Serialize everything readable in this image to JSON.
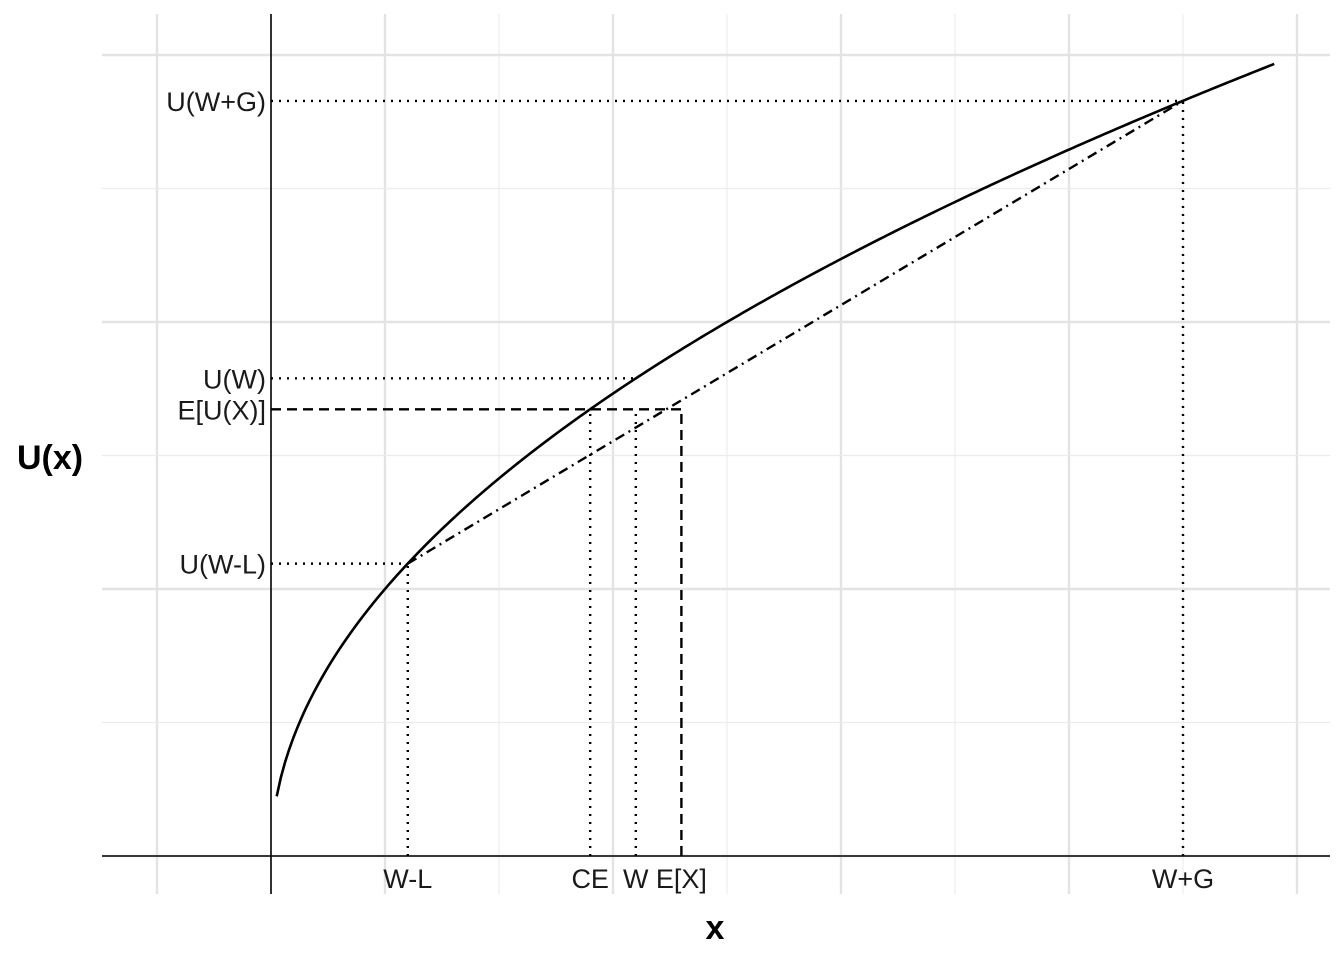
{
  "chart_data": {
    "type": "line",
    "title": "",
    "xlabel": "x",
    "ylabel": "U(x)",
    "grid": true,
    "xlim": [
      -1.5,
      9.26
    ],
    "ylim": [
      0,
      3.16
    ],
    "curve": {
      "function": "sqrt",
      "x": [
        0.05,
        0.2,
        0.5,
        1.0,
        1.2,
        1.5,
        2.0,
        2.5,
        2.8,
        3.0,
        3.2,
        3.5,
        4.0,
        5.0,
        6.0,
        7.0,
        8.0,
        8.8
      ],
      "y": [
        0.224,
        0.447,
        0.707,
        1.0,
        1.095,
        1.225,
        1.414,
        1.581,
        1.673,
        1.732,
        1.789,
        1.871,
        2.0,
        2.236,
        2.449,
        2.646,
        2.828,
        2.966
      ],
      "style": "solid"
    },
    "chord": {
      "x": [
        1.2,
        8.0
      ],
      "y": [
        1.095,
        2.828
      ],
      "style": "dashdot"
    },
    "points": {
      "W-L": {
        "x": 1.2,
        "y": 1.095
      },
      "CE": {
        "x": 2.8,
        "y": 1.673
      },
      "W": {
        "x": 3.2,
        "y": 1.789
      },
      "E[X]": {
        "x": 3.6,
        "y": 1.673
      },
      "W+G": {
        "x": 8.0,
        "y": 2.828
      }
    },
    "x_tick_labels": [
      {
        "label": "W-L",
        "x": 1.2
      },
      {
        "label": "CE",
        "x": 2.8
      },
      {
        "label": "W",
        "x": 3.2
      },
      {
        "label": "E[X]",
        "x": 3.6
      },
      {
        "label": "W+G",
        "x": 8.0
      }
    ],
    "y_tick_labels": [
      {
        "label": "U(W+G)",
        "y": 2.828
      },
      {
        "label": "U(W)",
        "y": 1.789
      },
      {
        "label": "E[U(X)]",
        "y": 1.673
      },
      {
        "label": "U(W-L)",
        "y": 1.095
      }
    ],
    "guides": [
      {
        "kind": "h",
        "y": 2.828,
        "x_end": 8.0,
        "style": "dotted"
      },
      {
        "kind": "v",
        "x": 8.0,
        "y_end": 2.828,
        "style": "dotted"
      },
      {
        "kind": "h",
        "y": 1.789,
        "x_end": 3.2,
        "style": "dotted"
      },
      {
        "kind": "v",
        "x": 3.2,
        "y_end": 1.673,
        "style": "dotted"
      },
      {
        "kind": "h",
        "y": 1.673,
        "x_end": 3.6,
        "style": "dashed"
      },
      {
        "kind": "v",
        "x": 3.6,
        "y_end": 1.673,
        "style": "dashed"
      },
      {
        "kind": "v",
        "x": 2.8,
        "y_end": 1.673,
        "style": "dotted"
      },
      {
        "kind": "h",
        "y": 1.095,
        "x_end": 1.2,
        "style": "dotted"
      },
      {
        "kind": "v",
        "x": 1.2,
        "y_end": 1.095,
        "style": "dotted"
      }
    ],
    "major_grid_x": [
      -1.0,
      1.0,
      3.0,
      5.0,
      7.0,
      9.0
    ],
    "minor_grid_x": [
      0.0,
      2.0,
      4.0,
      6.0,
      8.0
    ],
    "major_grid_y": [
      0.0,
      1.0,
      2.0,
      3.0
    ],
    "minor_grid_y": [
      0.5,
      1.5,
      2.5
    ]
  }
}
